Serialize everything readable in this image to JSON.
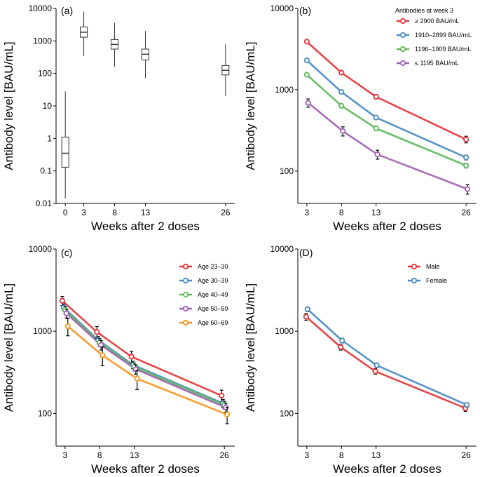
{
  "figure": {
    "x_label": "Weeks after 2 doses",
    "y_label": "Antibody level [BAU/mL]"
  },
  "colors": {
    "red": "#E4363A",
    "blue": "#4A8BC2",
    "green": "#5DBB5A",
    "purple": "#A25FB4",
    "orange": "#F7941D",
    "box": "#333333"
  },
  "chart_data": [
    {
      "id": "a",
      "panel_label": "(a)",
      "type": "box",
      "xlabel": "Weeks after 2 doses",
      "ylabel": "Antibody level [BAU/mL]",
      "yscale": "log",
      "ylim": [
        0.01,
        10000
      ],
      "y_ticks": [
        0.01,
        0.1,
        1,
        10,
        100,
        1000,
        10000
      ],
      "y_tick_labels": [
        "0.01",
        "0.1",
        "1",
        "10",
        "100",
        "1000",
        "10000"
      ],
      "xlim": [
        -1.5,
        27.5
      ],
      "x_ticks": [
        0,
        3,
        8,
        13,
        26
      ],
      "x_tick_labels": [
        "0",
        "3",
        "8",
        "13",
        "26"
      ],
      "boxes": [
        {
          "x": 0,
          "min": 0.014,
          "q1": 0.13,
          "median": 0.35,
          "q3": 1.1,
          "max": 28
        },
        {
          "x": 3,
          "min": 340,
          "q1": 1300,
          "median": 1850,
          "q3": 2700,
          "max": 8000
        },
        {
          "x": 8,
          "min": 160,
          "q1": 560,
          "median": 780,
          "q3": 1100,
          "max": 3600
        },
        {
          "x": 13,
          "min": 70,
          "q1": 260,
          "median": 390,
          "q3": 560,
          "max": 2000
        },
        {
          "x": 26,
          "min": 20,
          "q1": 90,
          "median": 125,
          "q3": 175,
          "max": 800
        }
      ]
    },
    {
      "id": "b",
      "panel_label": "(b)",
      "type": "line",
      "xlabel": "Weeks after 2 doses",
      "ylabel": "Antibody level [BAU/mL]",
      "yscale": "log",
      "ylim": [
        40,
        10000
      ],
      "y_ticks": [
        100,
        1000,
        10000
      ],
      "y_tick_labels": [
        "100",
        "1000",
        "10000"
      ],
      "xlim": [
        1.7,
        27.5
      ],
      "x_ticks": [
        3,
        8,
        13,
        26
      ],
      "x_tick_labels": [
        "3",
        "8",
        "13",
        "26"
      ],
      "legend_title": "Antibodies at week 3",
      "series": [
        {
          "name": "≥ 2900 BAU/mL",
          "color": "#E4363A",
          "x": [
            3,
            8,
            13,
            26
          ],
          "y": [
            3900,
            1620,
            820,
            245
          ],
          "lo": [
            3760,
            1540,
            770,
            222
          ],
          "hi": [
            4040,
            1700,
            870,
            268
          ]
        },
        {
          "name": "1910–2899 BAU/mL",
          "color": "#4A8BC2",
          "x": [
            3,
            8,
            13,
            26
          ],
          "y": [
            2300,
            940,
            455,
            147
          ],
          "lo": [
            2260,
            905,
            430,
            137
          ],
          "hi": [
            2340,
            975,
            480,
            157
          ]
        },
        {
          "name": "1196–1909 BAU/mL",
          "color": "#5DBB5A",
          "x": [
            3,
            8,
            13,
            26
          ],
          "y": [
            1530,
            635,
            335,
            117
          ],
          "lo": [
            1500,
            605,
            315,
            109
          ],
          "hi": [
            1560,
            665,
            355,
            125
          ]
        },
        {
          "name": "≤ 1195 BAU/mL",
          "color": "#A25FB4",
          "x": [
            3.2,
            8.2,
            13.2,
            26.2
          ],
          "y": [
            690,
            310,
            160,
            60
          ],
          "lo": [
            610,
            270,
            140,
            52
          ],
          "hi": [
            770,
            350,
            180,
            68
          ]
        }
      ]
    },
    {
      "id": "c",
      "panel_label": "(c)",
      "type": "line",
      "xlabel": "Weeks after 2 doses",
      "ylabel": "Antibody level [BAU/mL]",
      "yscale": "log",
      "ylim": [
        40,
        10000
      ],
      "y_ticks": [
        100,
        1000,
        10000
      ],
      "y_tick_labels": [
        "100",
        "1000",
        "10000"
      ],
      "xlim": [
        1.7,
        27.5
      ],
      "x_ticks": [
        3,
        8,
        13,
        26
      ],
      "x_tick_labels": [
        "3",
        "8",
        "13",
        "26"
      ],
      "legend_title": "",
      "series": [
        {
          "name": "Age 23–30",
          "color": "#E4363A",
          "x": [
            2.6,
            7.6,
            12.6,
            25.6
          ],
          "y": [
            2350,
            980,
            490,
            165
          ],
          "lo": [
            2050,
            820,
            410,
            138
          ],
          "hi": [
            2650,
            1140,
            570,
            192
          ]
        },
        {
          "name": "Age 30–39",
          "color": "#4A8BC2",
          "x": [
            2.8,
            7.8,
            12.8,
            25.8
          ],
          "y": [
            1950,
            780,
            390,
            133
          ],
          "lo": [
            1760,
            700,
            350,
            118
          ],
          "hi": [
            2140,
            860,
            430,
            148
          ]
        },
        {
          "name": "Age 40–49",
          "color": "#5DBB5A",
          "x": [
            3.0,
            8.0,
            13.0,
            26.0
          ],
          "y": [
            1820,
            730,
            370,
            127
          ],
          "lo": [
            1640,
            650,
            330,
            113
          ],
          "hi": [
            2000,
            810,
            410,
            141
          ]
        },
        {
          "name": "Age 50–59",
          "color": "#A25FB4",
          "x": [
            3.2,
            8.2,
            13.2,
            26.2
          ],
          "y": [
            1650,
            680,
            345,
            118
          ],
          "lo": [
            1450,
            590,
            300,
            103
          ],
          "hi": [
            1850,
            770,
            390,
            133
          ]
        },
        {
          "name": "Age 60–69",
          "color": "#F7941D",
          "x": [
            3.4,
            8.4,
            13.4,
            26.4
          ],
          "y": [
            1150,
            510,
            265,
            97
          ],
          "lo": [
            880,
            380,
            195,
            75
          ],
          "hi": [
            1420,
            640,
            335,
            119
          ]
        }
      ]
    },
    {
      "id": "d",
      "panel_label": "(D)",
      "type": "line",
      "xlabel": "Weeks after 2 doses",
      "ylabel": "Antibody level [BAU/mL]",
      "yscale": "log",
      "ylim": [
        40,
        10000
      ],
      "y_ticks": [
        100,
        1000,
        10000
      ],
      "y_tick_labels": [
        "100",
        "1000",
        "10000"
      ],
      "xlim": [
        1.7,
        27.5
      ],
      "x_ticks": [
        3,
        8,
        13,
        26
      ],
      "x_tick_labels": [
        "3",
        "8",
        "13",
        "26"
      ],
      "legend_title": "",
      "series": [
        {
          "name": "Male",
          "color": "#E4363A",
          "x": [
            2.9,
            7.9,
            12.9,
            25.9
          ],
          "y": [
            1500,
            640,
            325,
            116
          ],
          "lo": [
            1360,
            590,
            300,
            106
          ],
          "hi": [
            1640,
            690,
            350,
            126
          ]
        },
        {
          "name": "Female",
          "color": "#4A8BC2",
          "x": [
            3.1,
            8.1,
            13.1,
            26.1
          ],
          "y": [
            1850,
            770,
            385,
            127
          ],
          "lo": [
            1730,
            720,
            360,
            119
          ],
          "hi": [
            1970,
            820,
            410,
            135
          ]
        }
      ]
    }
  ]
}
